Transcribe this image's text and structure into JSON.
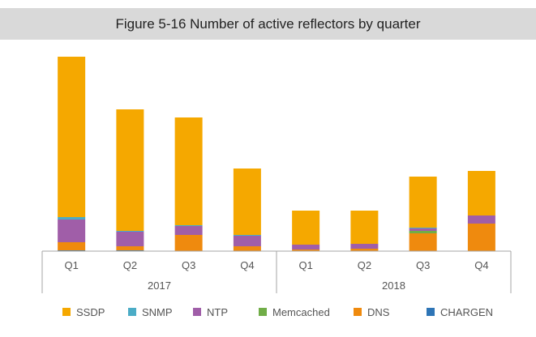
{
  "chart_data": {
    "type": "bar",
    "stacked": true,
    "title": "Figure 5-16 Number of active reflectors by quarter",
    "categories": [
      "Q1",
      "Q2",
      "Q3",
      "Q4",
      "Q1",
      "Q2",
      "Q3",
      "Q4"
    ],
    "groups": [
      {
        "label": "2017",
        "quarters": 4
      },
      {
        "label": "2018",
        "quarters": 4
      }
    ],
    "series": [
      {
        "name": "CHARGEN",
        "color": "#2e75b6",
        "values": [
          1,
          1,
          0,
          0,
          0,
          0,
          0,
          0
        ]
      },
      {
        "name": "DNS",
        "color": "#ef8a0e",
        "values": [
          10,
          5,
          20,
          6,
          2,
          3,
          22,
          34
        ]
      },
      {
        "name": "Memcached",
        "color": "#70ad47",
        "values": [
          0,
          0,
          0,
          0,
          0,
          0,
          3,
          0
        ]
      },
      {
        "name": "NTP",
        "color": "#a05ea8",
        "values": [
          28,
          18,
          11,
          13,
          6,
          6,
          3,
          10
        ]
      },
      {
        "name": "SNMP",
        "color": "#4bacc6",
        "values": [
          3,
          1,
          1,
          1,
          0,
          0,
          1,
          0
        ]
      },
      {
        "name": "SSDP",
        "color": "#f5a800",
        "values": [
          198,
          150,
          133,
          82,
          42,
          41,
          63,
          55
        ]
      }
    ],
    "ylim": [
      0,
      250
    ],
    "legend": {
      "position": "bottom",
      "order": [
        "SSDP",
        "SNMP",
        "NTP",
        "Memcached",
        "DNS",
        "CHARGEN"
      ]
    },
    "grid": false
  }
}
